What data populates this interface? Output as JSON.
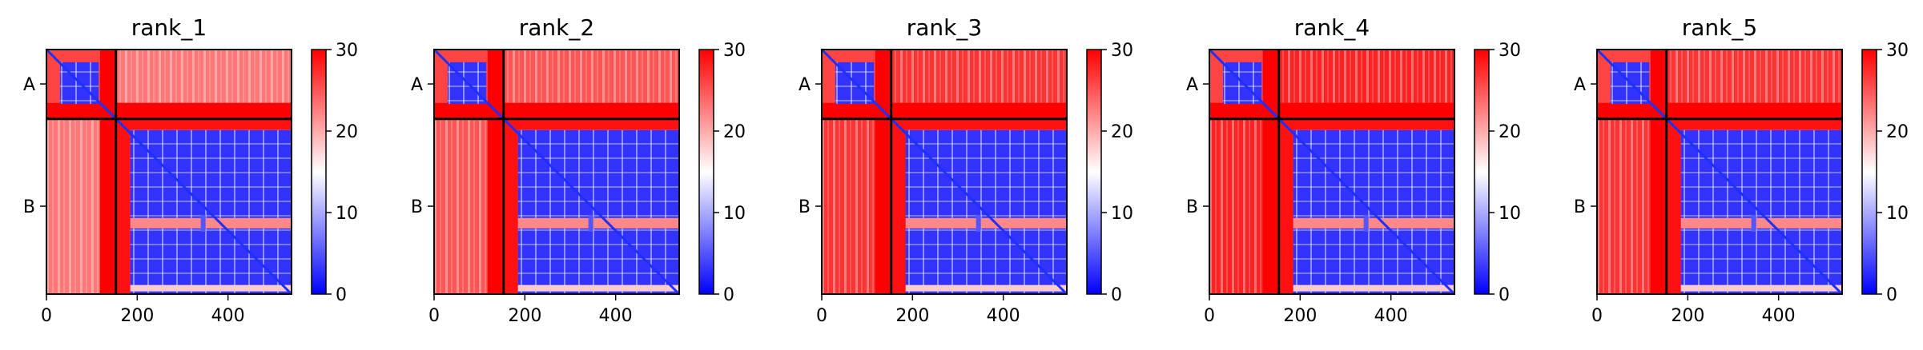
{
  "chart_data": {
    "type": "heatmap",
    "colormap": {
      "low": "#0000ff",
      "mid": "#ffffff",
      "high": "#ff0000"
    },
    "colorbar_range": [
      0,
      30
    ],
    "colorbar_ticks": [
      "0",
      "10",
      "20",
      "30"
    ],
    "x_range": [
      0,
      540
    ],
    "x_ticks": [
      {
        "value": 0,
        "label": "0"
      },
      {
        "value": 200,
        "label": "200"
      },
      {
        "value": 400,
        "label": "400"
      }
    ],
    "chain_boundary": 153,
    "chains": [
      {
        "label": "A",
        "center": 76
      },
      {
        "label": "B",
        "center": 346
      }
    ],
    "panels": [
      {
        "title": "rank_1",
        "inter_level": 23
      },
      {
        "title": "rank_2",
        "inter_level": 25
      },
      {
        "title": "rank_3",
        "inter_level": 27
      },
      {
        "title": "rank_4",
        "inter_level": 28
      },
      {
        "title": "rank_5",
        "inter_level": 27
      }
    ]
  }
}
